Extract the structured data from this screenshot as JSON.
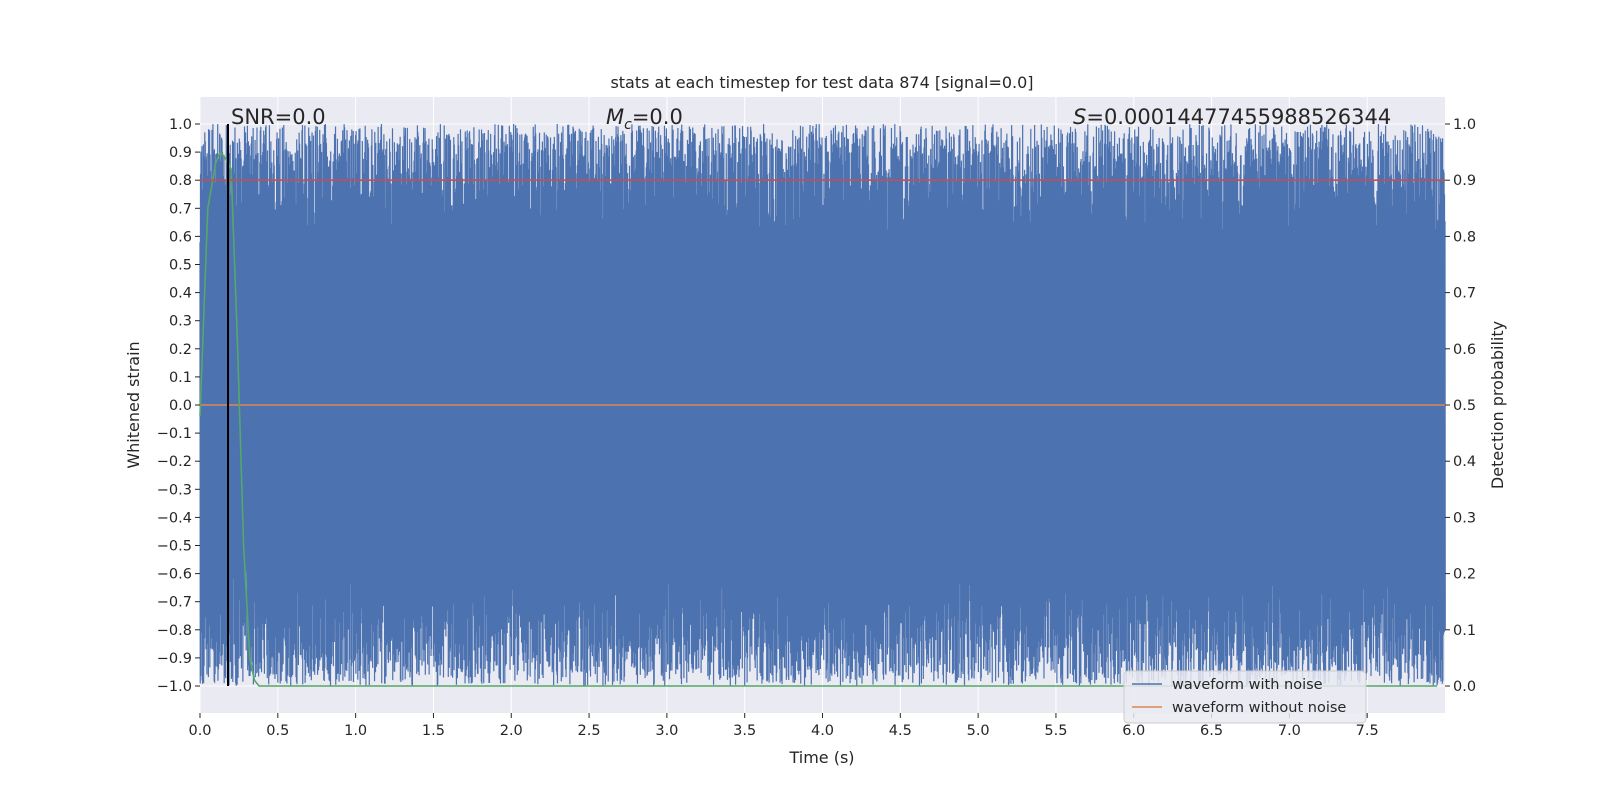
{
  "chart_data": {
    "type": "line",
    "title": "stats at each timestep for test data 874 [signal=0.0]",
    "xlabel": "Time (s)",
    "ylabel": "Whitened strain",
    "y2label": "Detection probability",
    "xlim": [
      0.0,
      8.0
    ],
    "ylim": [
      -1.1,
      1.1
    ],
    "y2lim": [
      -0.045,
      1.045
    ],
    "xticks": [
      "0.0",
      "0.5",
      "1.0",
      "1.5",
      "2.0",
      "2.5",
      "3.0",
      "3.5",
      "4.0",
      "4.5",
      "5.0",
      "5.5",
      "6.0",
      "6.5",
      "7.0",
      "7.5"
    ],
    "yticks": [
      "1.0",
      "0.9",
      "0.8",
      "0.7",
      "0.6",
      "0.5",
      "0.4",
      "0.3",
      "0.2",
      "0.1",
      "0.0",
      "−0.1",
      "−0.2",
      "−0.3",
      "−0.4",
      "−0.5",
      "−0.6",
      "−0.7",
      "−0.8",
      "−0.9",
      "−1.0"
    ],
    "y2ticks": [
      "1.0",
      "0.9",
      "0.8",
      "0.7",
      "0.6",
      "0.5",
      "0.4",
      "0.3",
      "0.2",
      "0.1",
      "0.0"
    ],
    "grid": true,
    "legend_position": "bottom-right",
    "annotations": {
      "snr": "SNR=0.0",
      "mc_symbol": "M",
      "mc_sub": "c",
      "mc_value": "=0.0",
      "s_symbol": "S",
      "s_value": "=0.00014477455988526344"
    },
    "series": [
      {
        "name": "waveform with noise",
        "axis": "left",
        "color": "#4c72b0",
        "description": "dense whitened strain noise filling roughly -1.0 to 1.0 across 0–8 s"
      },
      {
        "name": "waveform without noise",
        "axis": "left",
        "color": "#dd8452",
        "x": [
          0.0,
          8.0
        ],
        "y": [
          0.0,
          0.0
        ]
      },
      {
        "axis": "right",
        "color": "#55a868",
        "x": [
          0.0,
          0.05,
          0.1,
          0.13,
          0.16,
          0.2,
          0.24,
          0.28,
          0.32,
          0.35,
          0.38,
          0.5,
          7.95
        ],
        "y": [
          0.48,
          0.85,
          0.93,
          0.95,
          0.94,
          0.92,
          0.62,
          0.25,
          0.05,
          0.01,
          0.0,
          0.0,
          0.0
        ]
      },
      {
        "axis": "right",
        "color": "#c44e52",
        "x": [
          0.0,
          8.0
        ],
        "y": [
          0.9,
          0.9
        ]
      }
    ],
    "vline": {
      "x": 0.18,
      "color": "#000000"
    }
  },
  "colors": {
    "plot_bg": "#eaeaf2",
    "grid": "#ffffff",
    "noise": "#4c72b0",
    "clean": "#dd8452",
    "prob": "#55a868",
    "threshold": "#c44e52"
  }
}
